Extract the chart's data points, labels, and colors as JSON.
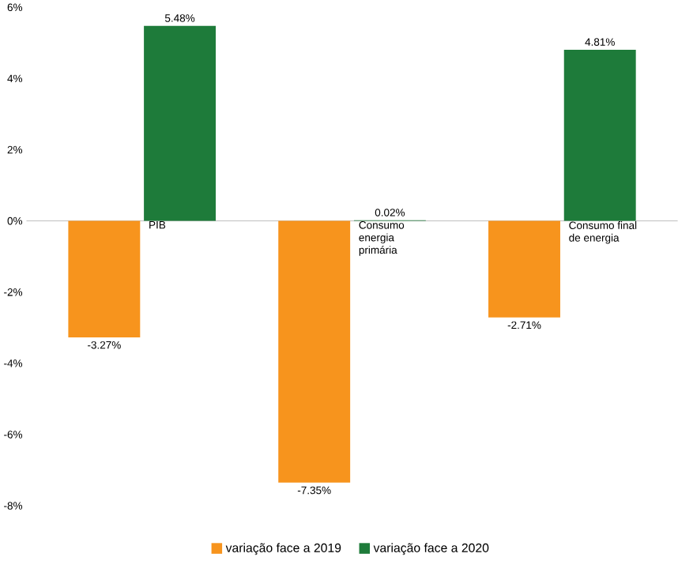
{
  "chart_data": {
    "type": "bar",
    "categories": [
      "PIB",
      "Consumo energia primária",
      "Consumo final de energia"
    ],
    "series": [
      {
        "name": "variação face a 2019",
        "color": "#f7941d",
        "values": [
          -3.27,
          -7.35,
          -2.71
        ],
        "value_labels": [
          "-3.27%",
          "-7.35%",
          "-2.71%"
        ]
      },
      {
        "name": "variação face a 2020",
        "color": "#1e7b3a",
        "values": [
          5.48,
          0.02,
          4.81
        ],
        "value_labels": [
          "5.48%",
          "0.02%",
          "4.81%"
        ]
      }
    ],
    "ylim": [
      -8,
      6
    ],
    "yticks": [
      {
        "value": -8,
        "label": "-8%"
      },
      {
        "value": -6,
        "label": "-6%"
      },
      {
        "value": -4,
        "label": "-4%"
      },
      {
        "value": -2,
        "label": "-2%"
      },
      {
        "value": 0,
        "label": "0%"
      },
      {
        "value": 2,
        "label": "2%"
      },
      {
        "value": 4,
        "label": "4%"
      },
      {
        "value": 6,
        "label": "6%"
      }
    ],
    "grid": false,
    "legend": "bottom"
  }
}
